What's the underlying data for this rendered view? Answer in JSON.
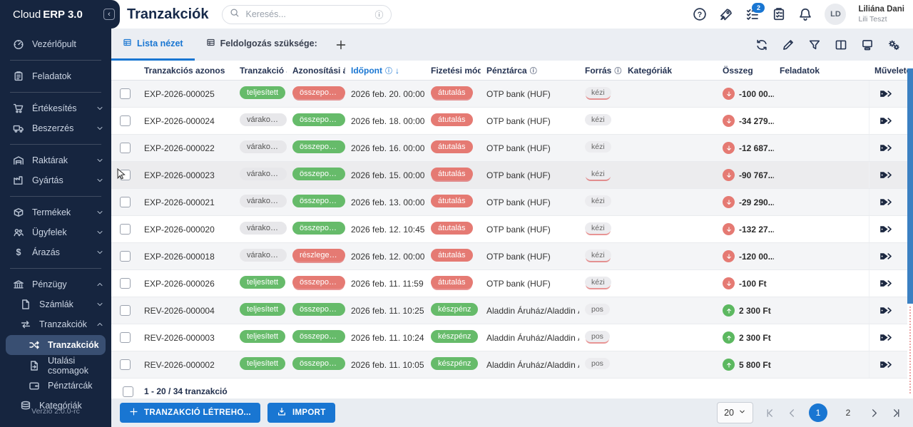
{
  "sidebar": {
    "logo_normal": "Cloud",
    "logo_bold": "ERP 3.0",
    "version": "Verzió 2.0.0-rc",
    "items": [
      {
        "label": "Vezérlőpult",
        "icon": "gauge"
      },
      {
        "divider": true
      },
      {
        "label": "Feladatok",
        "icon": "clipboard"
      },
      {
        "divider": true
      },
      {
        "label": "Értékesítés",
        "icon": "cart",
        "chevron": "down"
      },
      {
        "label": "Beszerzés",
        "icon": "truck",
        "chevron": "down"
      },
      {
        "divider": true
      },
      {
        "label": "Raktárak",
        "icon": "warehouse",
        "chevron": "down"
      },
      {
        "label": "Gyártás",
        "icon": "factory",
        "chevron": "down"
      },
      {
        "divider": true
      },
      {
        "label": "Termékek",
        "icon": "box",
        "chevron": "down"
      },
      {
        "label": "Ügyfelek",
        "icon": "people",
        "chevron": "down"
      },
      {
        "label": "Árazás",
        "icon": "dollar",
        "chevron": "down"
      },
      {
        "divider": true
      },
      {
        "label": "Pénzügy",
        "icon": "bank",
        "chevron": "up"
      },
      {
        "label": "Számlák",
        "icon": "invoice",
        "chevron": "down",
        "indent": 1
      },
      {
        "label": "Tranzakciók",
        "icon": "transfer",
        "chevron": "up",
        "indent": 1
      },
      {
        "label": "Tranzakciók",
        "icon": "shuffle",
        "indent": 2,
        "active": true
      },
      {
        "label": "Utalási csomagok",
        "icon": "docsend",
        "indent": 2
      },
      {
        "label": "Pénztárcák",
        "icon": "wallet",
        "indent": 2
      },
      {
        "label": "Kategóriák",
        "icon": "layers",
        "indent": 1
      }
    ]
  },
  "header": {
    "title": "Tranzakciók",
    "search_placeholder": "Keresés...",
    "action_icons": [
      {
        "icon": "help"
      },
      {
        "icon": "rocket"
      },
      {
        "icon": "tasks",
        "badge": "2"
      },
      {
        "icon": "clipboard2"
      },
      {
        "icon": "bell"
      }
    ],
    "user": {
      "initials": "LD",
      "name": "Liliána Dani",
      "subtitle": "Lili Teszt"
    }
  },
  "tabs": [
    {
      "label": "Lista nézet",
      "active": true
    },
    {
      "label": "Feldolgozás szüksége:",
      "active": false
    }
  ],
  "view_toolbar_icons": [
    "refresh",
    "edit",
    "filter",
    "columns",
    "layout",
    "settings"
  ],
  "table": {
    "headers": [
      {
        "label": ""
      },
      {
        "label": "Tranzakciós azonos"
      },
      {
        "label": "Tranzakció álla"
      },
      {
        "label": "Azonosítási áll"
      },
      {
        "label": "Időpont",
        "accent": true,
        "info": true,
        "sort": "down"
      },
      {
        "label": "Fizetési mód"
      },
      {
        "label": "Pénztárca",
        "info": true
      },
      {
        "label": "Forrás",
        "info": true
      },
      {
        "label": "Kategóriák"
      },
      {
        "label": "Összeg"
      },
      {
        "label": "Feladatok"
      },
      {
        "label": "Művelete"
      }
    ],
    "rows": [
      {
        "id": "EXP-2026-000025",
        "status": {
          "label": "teljesített",
          "variant": "green"
        },
        "recon": {
          "label": "összepont...",
          "variant": "red",
          "u": true
        },
        "date": "2026 feb. 20. 00:00",
        "payment": {
          "label": "átutalás",
          "variant": "red",
          "u": true
        },
        "wallet": "OTP bank (HUF)",
        "source": {
          "label": "kézi",
          "u": true
        },
        "amount": {
          "text": "-100 00...",
          "dir": "down"
        }
      },
      {
        "id": "EXP-2026-000024",
        "status": {
          "label": "várakozik",
          "variant": "gray"
        },
        "recon": {
          "label": "összepont...",
          "variant": "green"
        },
        "date": "2026 feb. 18. 00:00",
        "payment": {
          "label": "átutalás",
          "variant": "red"
        },
        "wallet": "OTP bank (HUF)",
        "source": {
          "label": "kézi"
        },
        "amount": {
          "text": "-34 279...",
          "dir": "down"
        }
      },
      {
        "id": "EXP-2026-000022",
        "status": {
          "label": "várakozik",
          "variant": "gray"
        },
        "recon": {
          "label": "összepont...",
          "variant": "green"
        },
        "date": "2026 feb. 16. 00:00",
        "payment": {
          "label": "átutalás",
          "variant": "red"
        },
        "wallet": "OTP bank (HUF)",
        "source": {
          "label": "kézi"
        },
        "amount": {
          "text": "-12 687...",
          "dir": "down"
        }
      },
      {
        "id": "EXP-2026-000023",
        "status": {
          "label": "várakozik",
          "variant": "gray"
        },
        "recon": {
          "label": "összepont...",
          "variant": "green"
        },
        "date": "2026 feb. 15. 00:00",
        "payment": {
          "label": "átutalás",
          "variant": "red",
          "u": true
        },
        "wallet": "OTP bank (HUF)",
        "source": {
          "label": "kézi",
          "u": true
        },
        "amount": {
          "text": "-90 767...",
          "dir": "down"
        },
        "hover": true
      },
      {
        "id": "EXP-2026-000021",
        "status": {
          "label": "várakozik",
          "variant": "gray"
        },
        "recon": {
          "label": "összepont...",
          "variant": "green"
        },
        "date": "2026 feb. 13. 00:00",
        "payment": {
          "label": "átutalás",
          "variant": "red"
        },
        "wallet": "OTP bank (HUF)",
        "source": {
          "label": "kézi"
        },
        "amount": {
          "text": "-29 290...",
          "dir": "down"
        }
      },
      {
        "id": "EXP-2026-000020",
        "status": {
          "label": "várakozik",
          "variant": "gray"
        },
        "recon": {
          "label": "összepont...",
          "variant": "green"
        },
        "date": "2026 feb. 12. 10:45",
        "payment": {
          "label": "átutalás",
          "variant": "red"
        },
        "wallet": "OTP bank (HUF)",
        "source": {
          "label": "kézi",
          "u": true
        },
        "amount": {
          "text": "-132 27...",
          "dir": "down"
        }
      },
      {
        "id": "EXP-2026-000018",
        "status": {
          "label": "várakozik",
          "variant": "gray"
        },
        "recon": {
          "label": "részleges...",
          "variant": "red",
          "u": true
        },
        "date": "2026 feb. 12. 00:00",
        "payment": {
          "label": "átutalás",
          "variant": "red"
        },
        "wallet": "OTP bank (HUF)",
        "source": {
          "label": "kézi",
          "u": true
        },
        "amount": {
          "text": "-120 00...",
          "dir": "down"
        }
      },
      {
        "id": "EXP-2026-000026",
        "status": {
          "label": "teljesített",
          "variant": "green"
        },
        "recon": {
          "label": "összepont...",
          "variant": "red",
          "u": true
        },
        "date": "2026 feb. 11. 11:59",
        "payment": {
          "label": "átutalás",
          "variant": "red",
          "u": true
        },
        "wallet": "OTP bank (HUF)",
        "source": {
          "label": "kézi",
          "u": true
        },
        "amount": {
          "text": "-100 Ft",
          "dir": "down"
        }
      },
      {
        "id": "REV-2026-000004",
        "status": {
          "label": "teljesített",
          "variant": "green"
        },
        "recon": {
          "label": "összepont...",
          "variant": "green"
        },
        "date": "2026 feb. 11. 10:25",
        "payment": {
          "label": "készpénz",
          "variant": "green"
        },
        "wallet": "Aladdin Áruház/Aladdin Áruh",
        "source": {
          "label": "pos"
        },
        "amount": {
          "text": "2 300 Ft",
          "dir": "up"
        }
      },
      {
        "id": "REV-2026-000003",
        "status": {
          "label": "teljesített",
          "variant": "green"
        },
        "recon": {
          "label": "összepont...",
          "variant": "green"
        },
        "date": "2026 feb. 11. 10:24",
        "payment": {
          "label": "készpénz",
          "variant": "green"
        },
        "wallet": "Aladdin Áruház/Aladdin Áruh",
        "source": {
          "label": "pos",
          "u": true
        },
        "amount": {
          "text": "2 300 Ft",
          "dir": "up"
        }
      },
      {
        "id": "REV-2026-000002",
        "status": {
          "label": "teljesített",
          "variant": "green"
        },
        "recon": {
          "label": "összepont...",
          "variant": "green"
        },
        "date": "2026 feb. 11. 10:05",
        "payment": {
          "label": "készpénz",
          "variant": "green"
        },
        "wallet": "Aladdin Áruház/Aladdin Áruh",
        "source": {
          "label": "pos"
        },
        "amount": {
          "text": "5 800 Ft",
          "dir": "up"
        }
      }
    ],
    "footer_summary": "1 - 20 / 34 tranzakció"
  },
  "actions": {
    "create_label": "TRANZAKCIÓ LÉTREHO...",
    "import_label": "IMPORT"
  },
  "pagination": {
    "page_size": "20",
    "pages": [
      "1",
      "2"
    ],
    "active_page": "1"
  },
  "colors": {
    "accent_blue": "#1976d2",
    "sidebar_navy": "#16253f",
    "badge_green": "#66bb6a",
    "badge_red": "#e57a73",
    "amount_up_green": "#5cb860"
  }
}
